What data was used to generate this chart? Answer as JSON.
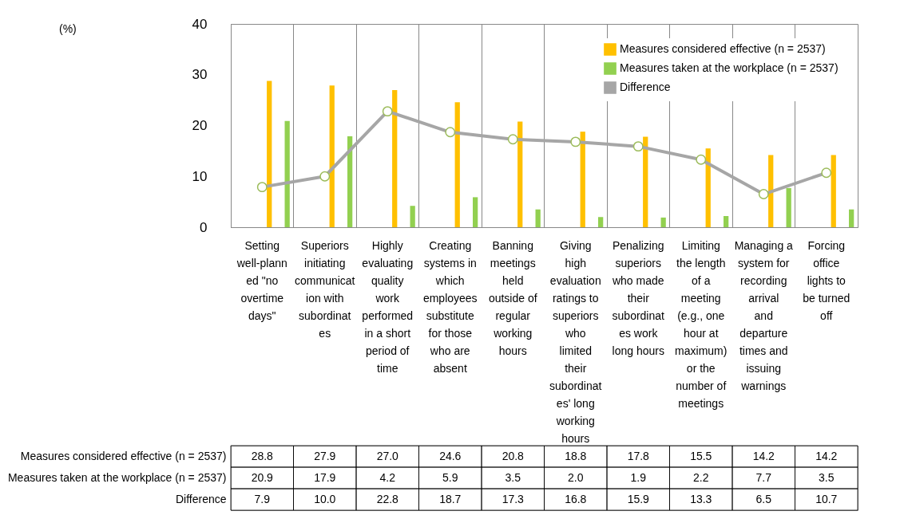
{
  "chart_data": {
    "type": "bar",
    "annotations": [
      "(%)"
    ],
    "categories": [
      "Setting well-planned \"no overtime days\"",
      "Superiors initiating communication with subordinates",
      "Highly evaluating quality work performed in a short period of time",
      "Creating systems in which employees substitute for those who are absent",
      "Banning meetings held outside of regular working hours",
      "Giving high evaluation ratings to superiors who limited their subordinates' long working hours",
      "Penalizing superiors who made their subordinates work long hours",
      "Limiting the length of a meeting (e.g., one hour at maximum) or the number of meetings",
      "Managing a system for recording arrival and departure times and issuing warnings",
      "Forcing office lights to be turned off"
    ],
    "series": [
      {
        "name": "Measures considered effective (n = 2537)",
        "color": "#ffc000",
        "values": [
          28.8,
          27.9,
          27.0,
          24.6,
          20.8,
          18.8,
          17.8,
          15.5,
          14.2,
          14.2
        ],
        "value_labels": [
          "28.8",
          "27.9",
          "27.0",
          "24.6",
          "20.8",
          "18.8",
          "17.8",
          "15.5",
          "14.2",
          "14.2"
        ]
      },
      {
        "name": "Measures taken at the workplace (n = 2537)",
        "color": "#92d050",
        "values": [
          20.9,
          17.9,
          4.2,
          5.9,
          3.5,
          2.0,
          1.9,
          2.2,
          7.7,
          3.5
        ],
        "value_labels": [
          "20.9",
          "17.9",
          "4.2",
          "5.9",
          "3.5",
          "2.0",
          "1.9",
          "2.2",
          "7.7",
          "3.5"
        ]
      },
      {
        "name": "Difference",
        "type": "line",
        "color": "#a6a6a6",
        "marker": "circle",
        "values": [
          7.9,
          10.0,
          22.8,
          18.7,
          17.3,
          16.8,
          15.9,
          13.3,
          6.5,
          10.7
        ],
        "value_labels": [
          "7.9",
          "10.0",
          "22.8",
          "18.7",
          "17.3",
          "16.8",
          "15.9",
          "13.3",
          "6.5",
          "10.7"
        ]
      }
    ],
    "ylim": [
      0,
      40
    ],
    "yticks": [
      0,
      10,
      20,
      30,
      40
    ],
    "legend": "top right"
  }
}
